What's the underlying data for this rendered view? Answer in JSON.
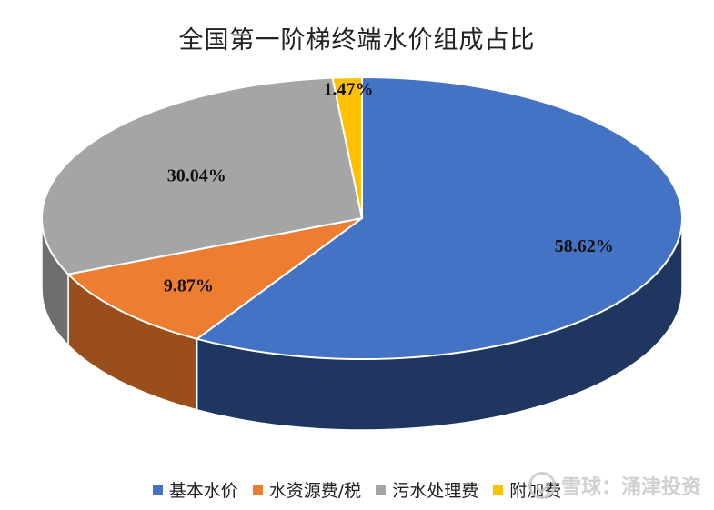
{
  "chart_data": {
    "type": "pie",
    "title": "全国第一阶梯终端水价组成占比",
    "categories": [
      "基本水价",
      "水资源费/税",
      "污水处理费",
      "附加费"
    ],
    "values": [
      58.62,
      9.87,
      30.04,
      1.47
    ],
    "labels": [
      "58.62%",
      "9.87%",
      "30.04%",
      "1.47%"
    ],
    "colors": [
      "#4472C4",
      "#ED7D31",
      "#A5A5A5",
      "#FFC000"
    ],
    "side_colors": [
      "#1F3660",
      "#9A4E1C",
      "#6E6E6E",
      "#A87F00"
    ],
    "legend_position": "bottom",
    "style": "3d"
  },
  "watermark": {
    "text": "雪球：涌津投资",
    "icon": "snowball-logo-icon"
  }
}
